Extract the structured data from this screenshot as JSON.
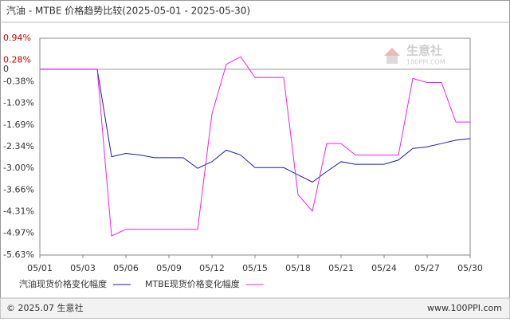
{
  "chart_data": {
    "type": "line",
    "title": "汽油 - MTBE 价格趋势比较(2025-05-01 - 2025-05-30)",
    "watermark": "生意社",
    "watermark_sub": "100PPI.COM",
    "footer_left": "© 2025.07 生意社",
    "footer_right": "www.100PPI.com",
    "categories": [
      "05/01",
      null,
      null,
      "05/03",
      null,
      null,
      "05/06",
      null,
      null,
      "05/09",
      null,
      null,
      "05/12",
      null,
      null,
      "05/15",
      null,
      null,
      "05/18",
      null,
      null,
      "05/21",
      null,
      null,
      "05/24",
      null,
      null,
      "05/27",
      null,
      null,
      "05/30"
    ],
    "series": [
      {
        "name": "汽油现货价格变化幅度",
        "color": "#1c1ca8",
        "values": [
          0,
          0,
          0,
          0,
          0,
          -2.65,
          -2.55,
          -2.6,
          -2.68,
          -2.68,
          -2.68,
          -3.0,
          -2.8,
          -2.45,
          -2.6,
          -2.98,
          -2.98,
          -2.98,
          -3.2,
          -3.42,
          -3.1,
          -2.8,
          -2.88,
          -2.88,
          -2.88,
          -2.75,
          -2.4,
          -2.35,
          -2.25,
          -2.15,
          -2.1
        ]
      },
      {
        "name": "MTBE现货价格变化幅度",
        "color": "#f020f0",
        "values": [
          0,
          0,
          0,
          0,
          0,
          -5.05,
          -4.85,
          -4.85,
          -4.85,
          -4.85,
          -4.85,
          -4.85,
          -1.35,
          0.15,
          0.38,
          -0.25,
          -0.25,
          -0.25,
          -3.8,
          -4.3,
          -2.25,
          -2.25,
          -2.6,
          -2.6,
          -2.6,
          -2.6,
          -0.28,
          -0.4,
          -0.4,
          -1.6,
          -1.6
        ]
      }
    ],
    "ylim": [
      -5.63,
      0.94
    ],
    "yticks": [
      {
        "value": 0.94,
        "label": "0.94%"
      },
      {
        "value": 0.28,
        "label": "0.28%"
      },
      0,
      {
        "value": -0.38,
        "label": "-0.38%"
      },
      {
        "value": -1.03,
        "label": "-1.03%"
      },
      {
        "value": -1.69,
        "label": "-1.69%"
      },
      {
        "value": -2.34,
        "label": "-2.34%"
      },
      {
        "value": -3.0,
        "label": "-3.00%"
      },
      {
        "value": -3.66,
        "label": "-3.66%"
      },
      {
        "value": -4.31,
        "label": "-4.31%"
      },
      {
        "value": -4.97,
        "label": "-4.97%"
      },
      {
        "value": -5.63,
        "label": "-5.63%"
      }
    ],
    "grid": false
  }
}
